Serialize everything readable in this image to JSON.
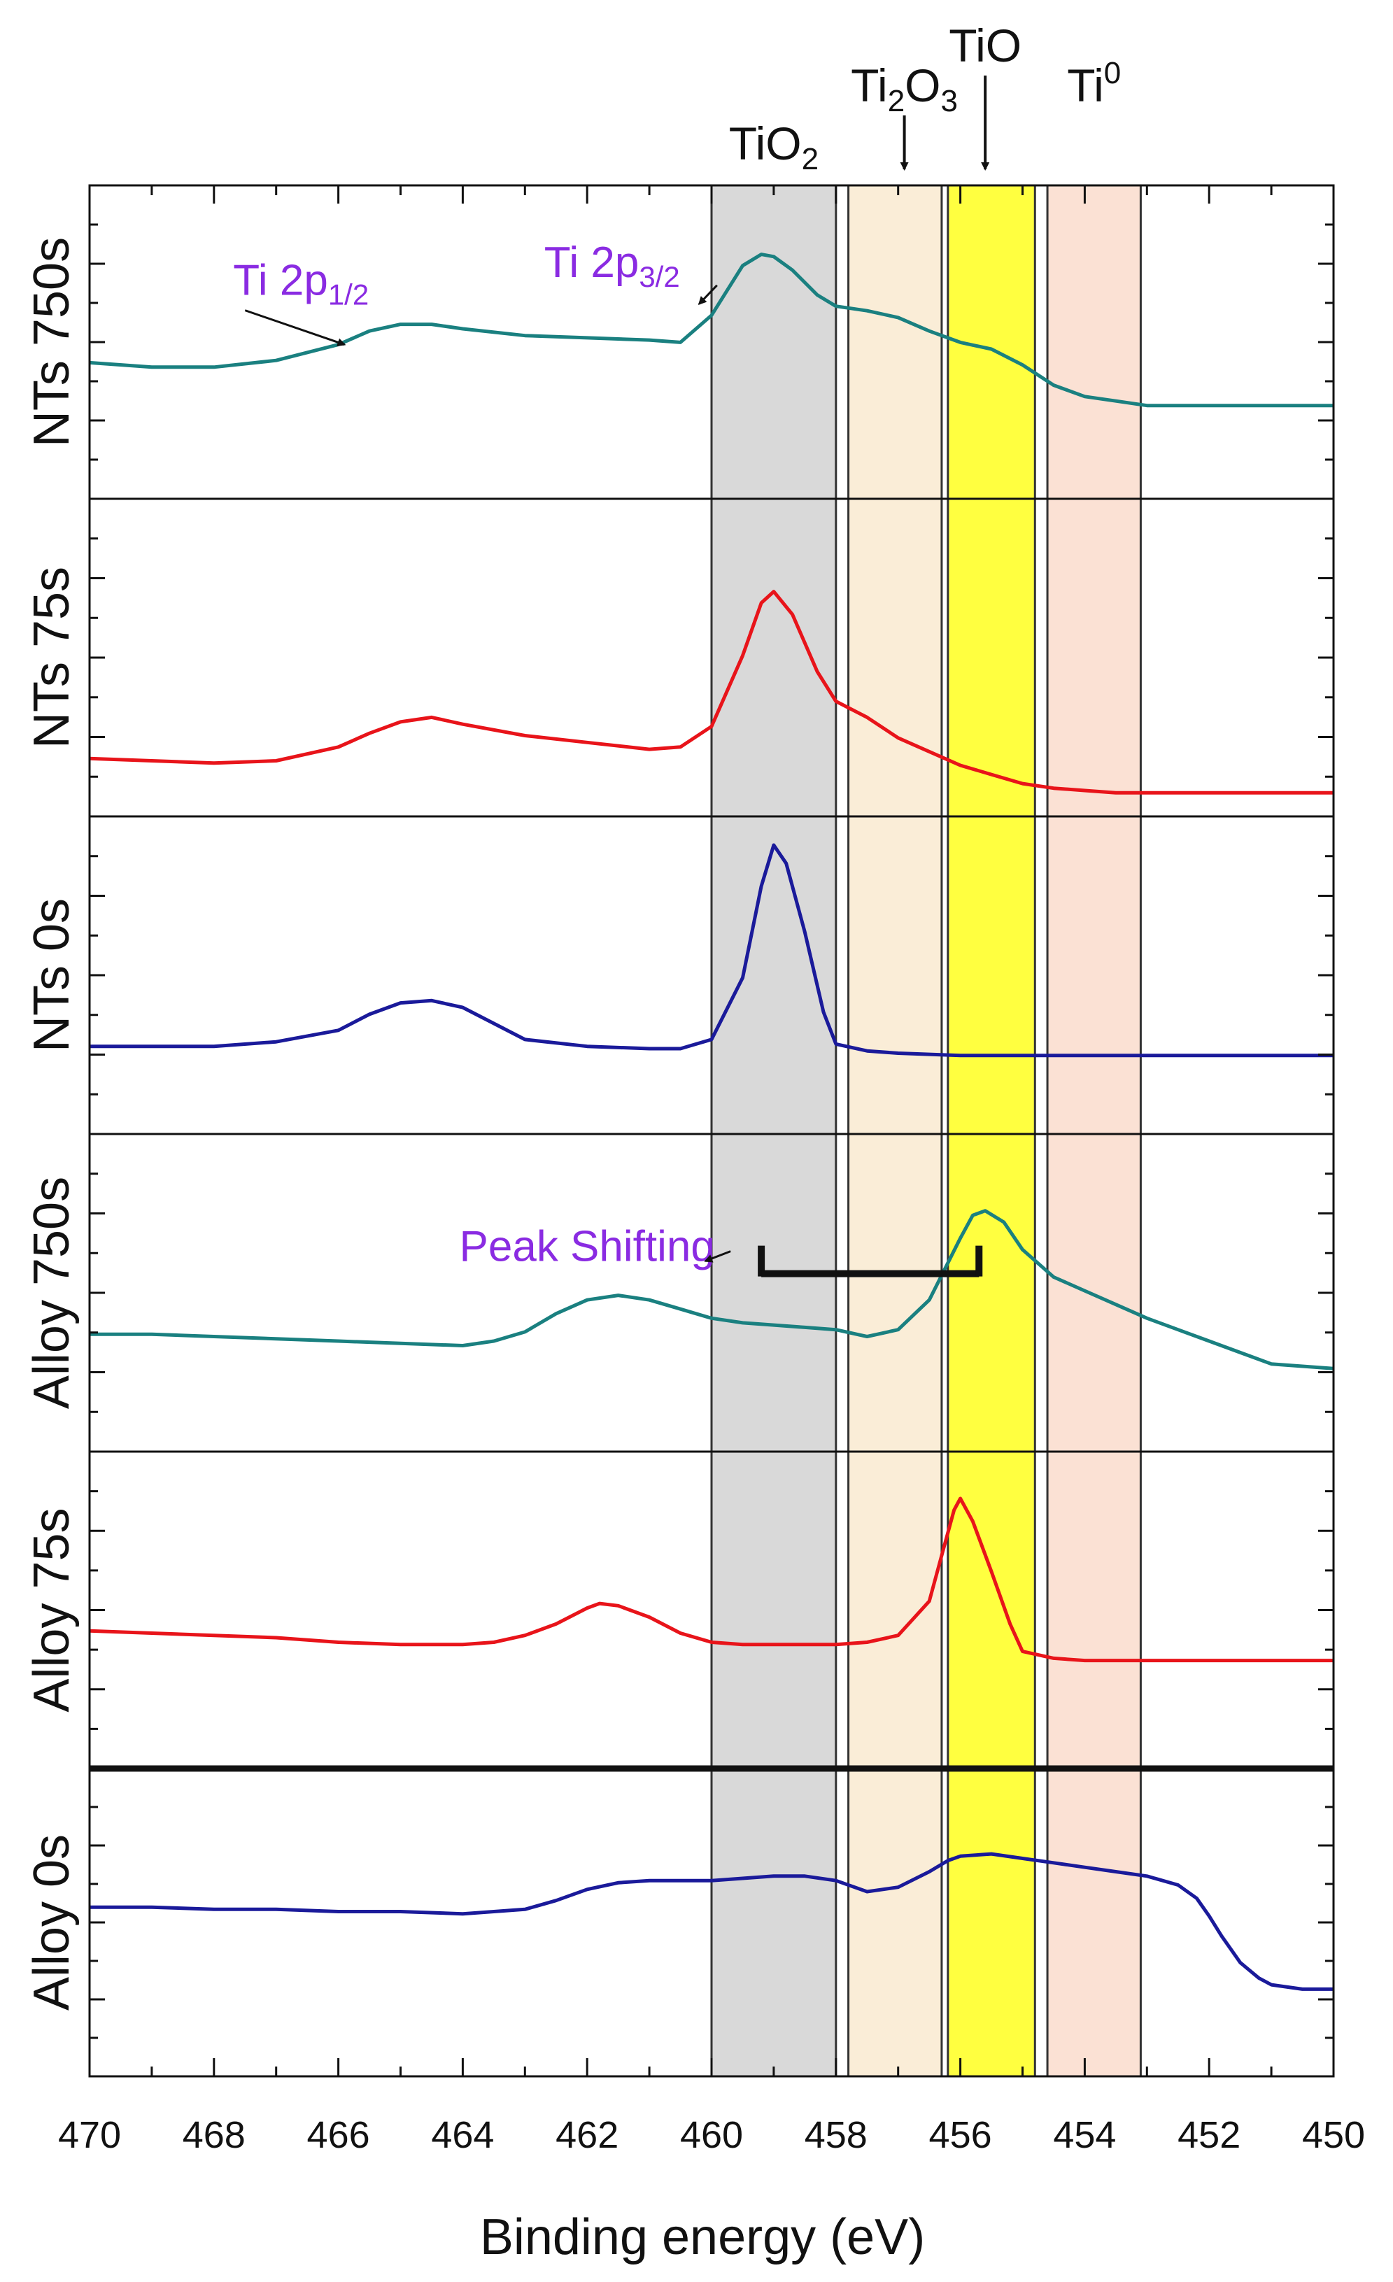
{
  "chart_data": {
    "type": "line",
    "title": "",
    "xlabel": "Binding energy (eV)",
    "xlim": [
      470,
      450
    ],
    "xticks": [
      470,
      468,
      466,
      464,
      462,
      460,
      458,
      456,
      454,
      452,
      450
    ],
    "regions": [
      {
        "label": "TiO",
        "label_sub": "2",
        "label_sup": "",
        "from": 460.0,
        "to": 458.0,
        "color": "#bfbfbf",
        "opacity": 0.6,
        "arrow": false,
        "label_tier": "low"
      },
      {
        "label": "Ti",
        "label_sub": "2",
        "label_mid": "O",
        "label_sub2": "3",
        "from": 457.8,
        "to": 456.3,
        "color": "#f6dfb7",
        "opacity": 0.55,
        "arrow": true,
        "arrow_at": 456.9,
        "label_tier": "mid"
      },
      {
        "label": "TiO",
        "label_sub": "",
        "label_sup": "",
        "from": 456.2,
        "to": 454.8,
        "color": "#ffff00",
        "opacity": 0.75,
        "arrow": true,
        "arrow_at": 455.6,
        "label_tier": "high"
      },
      {
        "label": "Ti",
        "label_sub": "",
        "label_sup": "0",
        "from": 454.6,
        "to": 453.1,
        "color": "#f7c9b0",
        "opacity": 0.55,
        "arrow": false,
        "label_tier": "mid"
      }
    ],
    "series": [
      {
        "name": "NTs 750s",
        "color": "#1a8080",
        "x": [
          470,
          469,
          468,
          467,
          466,
          465.5,
          465,
          464.5,
          464,
          463,
          462,
          461,
          460.5,
          460,
          459.5,
          459.2,
          459,
          458.7,
          458.3,
          458,
          457.5,
          457,
          456.5,
          456,
          455.5,
          455,
          454.5,
          454,
          453.5,
          453,
          452,
          451,
          450
        ],
        "y": [
          0.52,
          0.5,
          0.5,
          0.53,
          0.6,
          0.66,
          0.69,
          0.69,
          0.67,
          0.64,
          0.63,
          0.62,
          0.61,
          0.73,
          0.95,
          1.0,
          0.99,
          0.93,
          0.82,
          0.77,
          0.75,
          0.72,
          0.66,
          0.61,
          0.58,
          0.51,
          0.42,
          0.37,
          0.35,
          0.33,
          0.33,
          0.33,
          0.33
        ]
      },
      {
        "name": "NTs 75s",
        "color": "#e8141a",
        "x": [
          470,
          469,
          468,
          467,
          466,
          465.5,
          465,
          464.5,
          464,
          463,
          462,
          461,
          460.5,
          460,
          459.5,
          459.2,
          459,
          458.7,
          458.3,
          458,
          457.5,
          457,
          456.5,
          456,
          455.5,
          455,
          454.5,
          454,
          453.5,
          453,
          452,
          451,
          450
        ],
        "y": [
          0.17,
          0.16,
          0.15,
          0.16,
          0.22,
          0.28,
          0.33,
          0.35,
          0.32,
          0.27,
          0.24,
          0.21,
          0.22,
          0.31,
          0.62,
          0.85,
          0.9,
          0.8,
          0.55,
          0.42,
          0.35,
          0.26,
          0.2,
          0.14,
          0.1,
          0.06,
          0.04,
          0.03,
          0.02,
          0.02,
          0.02,
          0.02,
          0.02
        ]
      },
      {
        "name": "NTs 0s",
        "color": "#1a1a9a",
        "x": [
          470,
          469,
          468,
          467,
          466,
          465.5,
          465,
          464.5,
          464,
          463.5,
          463,
          462,
          461,
          460.5,
          460,
          459.5,
          459.2,
          459,
          458.8,
          458.5,
          458.2,
          458,
          457.5,
          457,
          456,
          455,
          454,
          453,
          452,
          451,
          450
        ],
        "y": [
          0.3,
          0.3,
          0.3,
          0.32,
          0.37,
          0.44,
          0.49,
          0.5,
          0.47,
          0.4,
          0.33,
          0.3,
          0.29,
          0.29,
          0.33,
          0.6,
          1.0,
          1.18,
          1.1,
          0.8,
          0.45,
          0.31,
          0.28,
          0.27,
          0.26,
          0.26,
          0.26,
          0.26,
          0.26,
          0.26,
          0.26
        ]
      },
      {
        "name": "Alloy 750s",
        "color": "#1a8080",
        "x": [
          470,
          469,
          468,
          467,
          466,
          465,
          464,
          463.5,
          463,
          462.5,
          462,
          461.5,
          461,
          460.5,
          460,
          459.5,
          459,
          458.5,
          458,
          457.5,
          457,
          456.5,
          456,
          455.8,
          455.6,
          455.3,
          455,
          454.5,
          454,
          453.5,
          453,
          452.5,
          452,
          451.5,
          451,
          450.5,
          450
        ],
        "y": [
          0.43,
          0.43,
          0.42,
          0.41,
          0.4,
          0.39,
          0.38,
          0.4,
          0.44,
          0.52,
          0.58,
          0.6,
          0.58,
          0.54,
          0.5,
          0.48,
          0.47,
          0.46,
          0.45,
          0.42,
          0.45,
          0.58,
          0.85,
          0.95,
          0.97,
          0.92,
          0.8,
          0.68,
          0.62,
          0.56,
          0.5,
          0.45,
          0.4,
          0.35,
          0.3,
          0.29,
          0.28
        ]
      },
      {
        "name": "Alloy 75s",
        "color": "#e8141a",
        "x": [
          470,
          469,
          468,
          467,
          466,
          465,
          464,
          463.5,
          463,
          462.5,
          462,
          461.8,
          461.5,
          461,
          460.5,
          460,
          459.5,
          459,
          458.5,
          458,
          457.5,
          457,
          456.5,
          456.3,
          456.1,
          456,
          455.8,
          455.5,
          455.2,
          455,
          454.5,
          454,
          453.5,
          453,
          452,
          451,
          450
        ],
        "y": [
          0.52,
          0.51,
          0.5,
          0.49,
          0.47,
          0.46,
          0.46,
          0.47,
          0.5,
          0.55,
          0.62,
          0.64,
          0.63,
          0.58,
          0.51,
          0.47,
          0.46,
          0.46,
          0.46,
          0.46,
          0.47,
          0.5,
          0.65,
          0.85,
          1.05,
          1.1,
          1.0,
          0.78,
          0.55,
          0.43,
          0.4,
          0.39,
          0.39,
          0.39,
          0.39,
          0.39,
          0.39
        ]
      },
      {
        "name": "Alloy 0s",
        "color": "#1a1a9a",
        "x": [
          470,
          469,
          468,
          467,
          466,
          465,
          464,
          463.5,
          463,
          462.5,
          462,
          461.5,
          461,
          460.5,
          460,
          459.5,
          459,
          458.5,
          458,
          457.5,
          457,
          456.5,
          456.2,
          456,
          455.5,
          455,
          454.5,
          454,
          453.5,
          453,
          452.5,
          452.2,
          452,
          451.8,
          451.5,
          451.2,
          451,
          450.5,
          450
        ],
        "y": [
          0.68,
          0.68,
          0.67,
          0.67,
          0.66,
          0.66,
          0.65,
          0.66,
          0.67,
          0.71,
          0.76,
          0.79,
          0.8,
          0.8,
          0.8,
          0.81,
          0.82,
          0.82,
          0.8,
          0.75,
          0.77,
          0.84,
          0.89,
          0.91,
          0.92,
          0.9,
          0.88,
          0.86,
          0.84,
          0.82,
          0.78,
          0.72,
          0.64,
          0.55,
          0.43,
          0.36,
          0.33,
          0.31,
          0.31
        ]
      }
    ],
    "annotations": [
      {
        "text": "Ti 2p",
        "sub": "1/2",
        "panel": 0,
        "x": 466.6,
        "level": 0.82,
        "arrow_to": [
          465.9,
          0.6
        ]
      },
      {
        "text": "Ti 2p",
        "sub": "3/2",
        "panel": 0,
        "x": 461.6,
        "level": 0.9,
        "arrow_to": [
          460.2,
          0.78
        ]
      },
      {
        "text": "Peak Shifting",
        "sub": "",
        "panel": 3,
        "x": 462.0,
        "level": 0.75,
        "arrow_to": [
          460.1,
          0.75
        ]
      }
    ],
    "peak_shift_marker": {
      "panel": 3,
      "from": 459.2,
      "to": 455.7,
      "level": 0.75
    }
  }
}
